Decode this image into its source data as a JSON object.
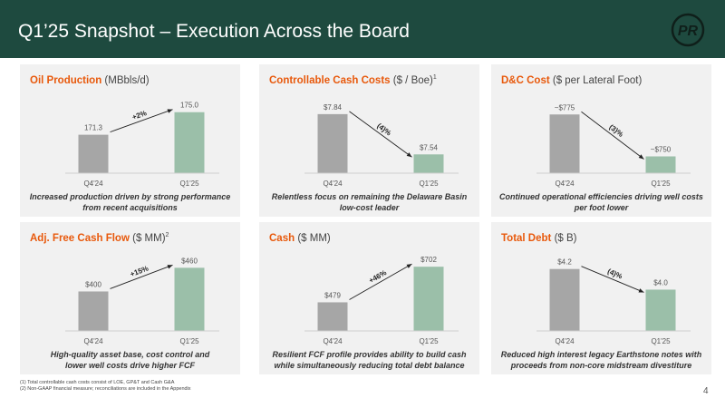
{
  "header": {
    "title": "Q1’25 Snapshot – Execution Across the Board",
    "logo_text": "PR"
  },
  "panels": [
    {
      "title_bold": "Oil Production",
      "title_rest": " (MBbls/d)",
      "title_sup": "",
      "caption_lines": [
        "Increased production driven by strong performance",
        "from recent acquisitions"
      ]
    },
    {
      "title_bold": "Controllable Cash Costs",
      "title_rest": " ($ / Boe)",
      "title_sup": "1",
      "caption_lines": [
        "Relentless focus on remaining the Delaware Basin",
        "low-cost leader"
      ]
    },
    {
      "title_bold": "D&C Cost",
      "title_rest": " ($ per Lateral Foot)",
      "title_sup": "",
      "caption_lines": [
        "Continued operational efficiencies driving well costs",
        "per foot lower"
      ]
    },
    {
      "title_bold": "Adj. Free Cash Flow",
      "title_rest": " ($ MM)",
      "title_sup": "2",
      "caption_lines": [
        "High-quality asset base, cost control and",
        "lower well costs drive higher FCF"
      ]
    },
    {
      "title_bold": "Cash",
      "title_rest": " ($ MM)",
      "title_sup": "",
      "caption_lines": [
        "Resilient FCF profile provides ability to build cash",
        "while simultaneously reducing total debt balance"
      ]
    },
    {
      "title_bold": "Total Debt",
      "title_rest": " ($ B)",
      "title_sup": "",
      "caption_lines": [
        "Reduced high interest legacy Earthstone notes with",
        "proceeds from non-core midstream divestiture"
      ]
    }
  ],
  "chart_data": [
    {
      "type": "bar",
      "categories": [
        "Q4'24",
        "Q1'25"
      ],
      "values": [
        171.3,
        175.0
      ],
      "value_labels": [
        "171.3",
        "175.0"
      ],
      "change_label": "+2%",
      "colors": [
        "#a6a6a6",
        "#9bbfa9"
      ]
    },
    {
      "type": "bar",
      "categories": [
        "Q4'24",
        "Q1'25"
      ],
      "values": [
        7.84,
        7.54
      ],
      "value_labels": [
        "$7.84",
        "$7.54"
      ],
      "change_label": "(4)%",
      "colors": [
        "#a6a6a6",
        "#9bbfa9"
      ]
    },
    {
      "type": "bar",
      "categories": [
        "Q4'24",
        "Q1'25"
      ],
      "values": [
        775,
        750
      ],
      "value_labels": [
        "~$775",
        "~$750"
      ],
      "change_label": "(3)%",
      "colors": [
        "#a6a6a6",
        "#9bbfa9"
      ]
    },
    {
      "type": "bar",
      "categories": [
        "Q4'24",
        "Q1'25"
      ],
      "values": [
        400,
        460
      ],
      "value_labels": [
        "$400",
        "$460"
      ],
      "change_label": "+15%",
      "colors": [
        "#a6a6a6",
        "#9bbfa9"
      ]
    },
    {
      "type": "bar",
      "categories": [
        "Q4'24",
        "Q1'25"
      ],
      "values": [
        479,
        702
      ],
      "value_labels": [
        "$479",
        "$702"
      ],
      "change_label": "+46%",
      "colors": [
        "#a6a6a6",
        "#9bbfa9"
      ]
    },
    {
      "type": "bar",
      "categories": [
        "Q4'24",
        "Q1'25"
      ],
      "values": [
        4.2,
        4.0
      ],
      "value_labels": [
        "$4.2",
        "$4.0"
      ],
      "change_label": "(4)%",
      "colors": [
        "#a6a6a6",
        "#9bbfa9"
      ]
    }
  ],
  "footnotes": [
    "(1)   Total controllable cash costs consist of LOE, GP&T and Cash G&A",
    "(2)   Non-GAAP financial measure; reconciliations are included in the Appendix"
  ],
  "page_number": "4",
  "colors": {
    "banner": "#1e4a3f",
    "title_accent": "#e8590c",
    "panel_bg": "#f1f1f1"
  }
}
